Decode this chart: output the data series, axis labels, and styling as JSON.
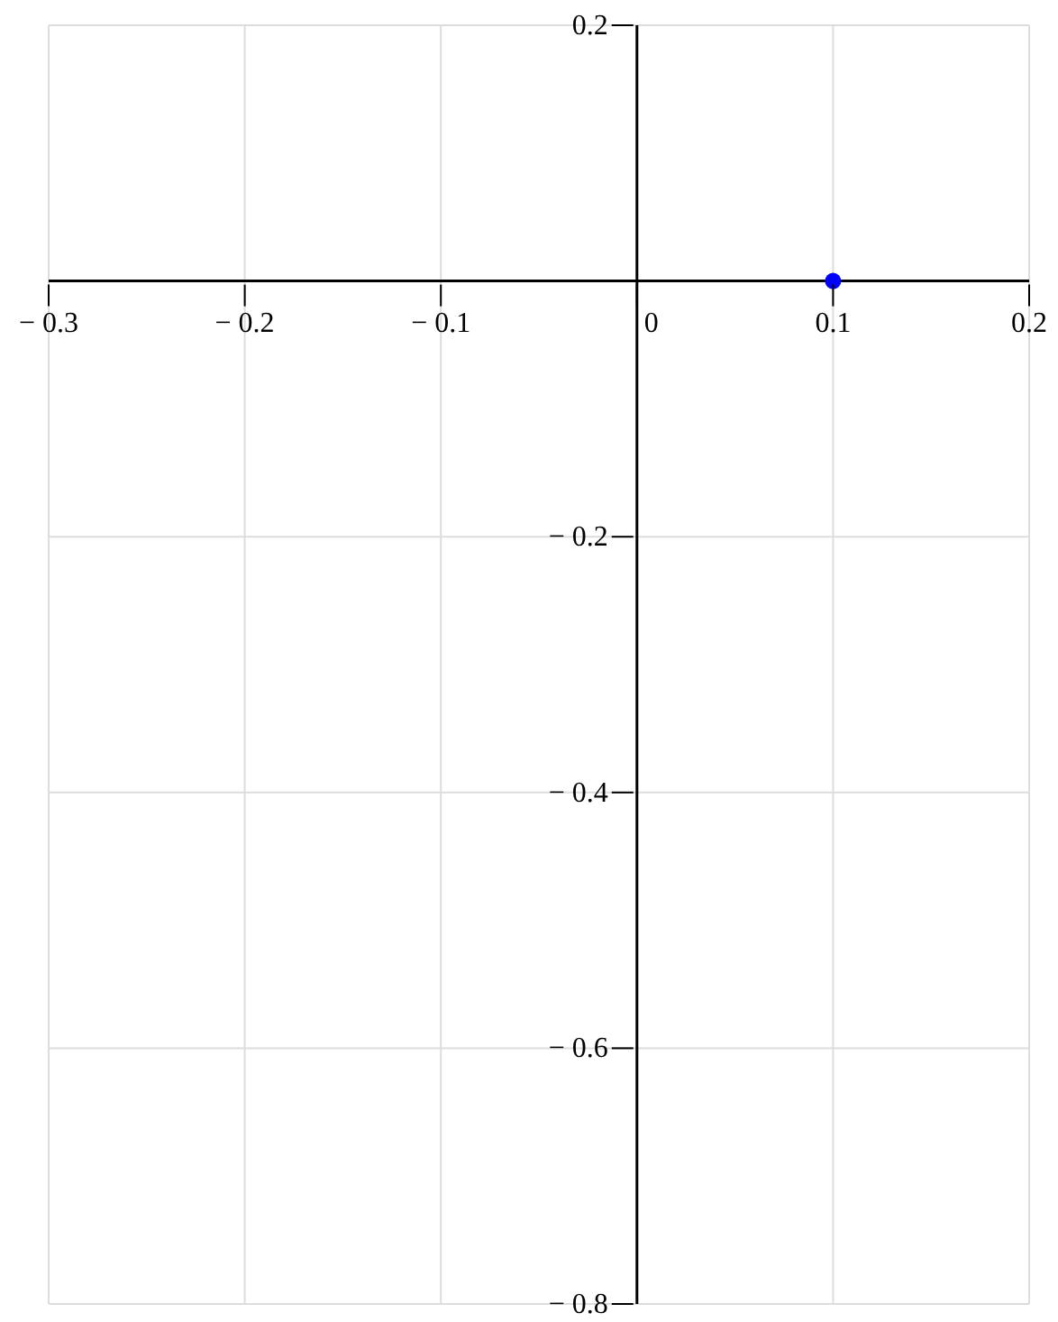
{
  "chart_data": {
    "type": "scatter",
    "x": [
      0.1
    ],
    "values": [
      0
    ],
    "color": "#0000ff",
    "marker": "circle",
    "xlim": [
      -0.3,
      0.2
    ],
    "ylim": [
      -0.8,
      0.2
    ],
    "xticks": [
      {
        "value": -0.3,
        "label": "− 0.3"
      },
      {
        "value": -0.2,
        "label": "− 0.2"
      },
      {
        "value": -0.1,
        "label": "− 0.1"
      },
      0,
      0.1,
      0.2
    ],
    "yticks": [
      {
        "value": -0.8,
        "label": "− 0.8"
      },
      {
        "value": -0.6,
        "label": "− 0.6"
      },
      {
        "value": -0.4,
        "label": "− 0.4"
      },
      {
        "value": -0.2,
        "label": "− 0.2"
      },
      {
        "value": 0,
        "label": null
      },
      0.2
    ],
    "grid": true
  }
}
